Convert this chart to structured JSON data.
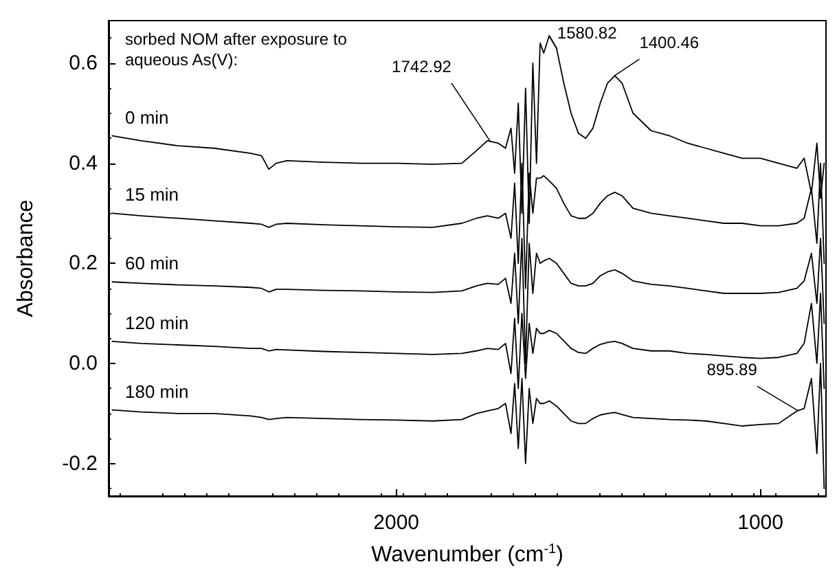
{
  "chart_data": {
    "type": "line",
    "xlabel": "Wavenumber (cm$^{-1}$)",
    "ylabel": "Absorbance",
    "xlim": [
      2790,
      820
    ],
    "ylim": [
      -0.265,
      0.685
    ],
    "xticks": [
      2000,
      1000
    ],
    "yticks": [
      -0.2,
      {
        "value": 0,
        "label": "0.0"
      },
      0.2,
      0.4,
      0.6
    ],
    "grid": false,
    "legend": false,
    "marker": "none",
    "x": [
      2780,
      2700,
      2600,
      2500,
      2400,
      2370,
      2350,
      2330,
      2300,
      2200,
      2100,
      2000,
      1900,
      1820,
      1780,
      1750,
      1720,
      1700,
      1685,
      1675,
      1665,
      1655,
      1645,
      1635,
      1625,
      1615,
      1605,
      1595,
      1580,
      1560,
      1540,
      1520,
      1500,
      1480,
      1460,
      1440,
      1420,
      1400,
      1380,
      1350,
      1300,
      1250,
      1200,
      1150,
      1100,
      1050,
      1000,
      950,
      900,
      880,
      860,
      845,
      835,
      825
    ],
    "series": [
      {
        "name": "0 min",
        "color": "#000000",
        "values": [
          0.455,
          0.445,
          0.435,
          0.43,
          0.42,
          0.415,
          0.388,
          0.4,
          0.405,
          0.402,
          0.4,
          0.4,
          0.398,
          0.4,
          0.425,
          0.445,
          0.44,
          0.43,
          0.47,
          0.38,
          0.52,
          0.3,
          0.55,
          0.28,
          0.6,
          0.4,
          0.64,
          0.62,
          0.655,
          0.63,
          0.56,
          0.5,
          0.46,
          0.45,
          0.47,
          0.52,
          0.56,
          0.575,
          0.56,
          0.5,
          0.465,
          0.455,
          0.44,
          0.43,
          0.42,
          0.41,
          0.41,
          0.4,
          0.39,
          0.41,
          0.34,
          0.44,
          0.33,
          0.4
        ]
      },
      {
        "name": "15 min",
        "color": "#000000",
        "values": [
          0.3,
          0.295,
          0.29,
          0.285,
          0.28,
          0.278,
          0.272,
          0.278,
          0.28,
          0.277,
          0.275,
          0.273,
          0.272,
          0.28,
          0.29,
          0.295,
          0.29,
          0.3,
          0.25,
          0.36,
          0.2,
          0.4,
          0.15,
          0.38,
          0.3,
          0.37,
          0.37,
          0.375,
          0.365,
          0.35,
          0.32,
          0.295,
          0.29,
          0.29,
          0.3,
          0.32,
          0.335,
          0.342,
          0.335,
          0.31,
          0.3,
          0.295,
          0.29,
          0.285,
          0.28,
          0.28,
          0.275,
          0.275,
          0.28,
          0.29,
          0.35,
          0.24,
          0.4,
          0.2
        ]
      },
      {
        "name": "60 min",
        "color": "#000000",
        "values": [
          0.163,
          0.16,
          0.157,
          0.155,
          0.152,
          0.15,
          0.143,
          0.148,
          0.148,
          0.146,
          0.145,
          0.143,
          0.142,
          0.145,
          0.155,
          0.16,
          0.158,
          0.17,
          0.12,
          0.22,
          0.08,
          0.25,
          0.0,
          0.24,
          0.14,
          0.22,
          0.2,
          0.205,
          0.21,
          0.2,
          0.18,
          0.16,
          0.155,
          0.155,
          0.16,
          0.175,
          0.183,
          0.187,
          0.18,
          0.165,
          0.158,
          0.155,
          0.15,
          0.145,
          0.14,
          0.14,
          0.14,
          0.142,
          0.15,
          0.165,
          0.22,
          0.12,
          0.25,
          0.08
        ]
      },
      {
        "name": "120 min",
        "color": "#000000",
        "values": [
          0.044,
          0.04,
          0.037,
          0.034,
          0.03,
          0.03,
          0.025,
          0.028,
          0.027,
          0.024,
          0.022,
          0.02,
          0.018,
          0.02,
          0.025,
          0.03,
          0.028,
          0.04,
          -0.02,
          0.09,
          -0.05,
          0.1,
          -0.03,
          0.08,
          0.02,
          0.07,
          0.06,
          0.06,
          0.066,
          0.06,
          0.045,
          0.03,
          0.022,
          0.02,
          0.03,
          0.038,
          0.042,
          0.044,
          0.04,
          0.03,
          0.025,
          0.025,
          0.02,
          0.018,
          0.015,
          0.012,
          0.01,
          0.012,
          0.02,
          0.04,
          0.12,
          0.0,
          0.14,
          -0.05
        ]
      },
      {
        "name": "180 min",
        "color": "#000000",
        "values": [
          -0.093,
          -0.097,
          -0.1,
          -0.1,
          -0.105,
          -0.108,
          -0.112,
          -0.11,
          -0.108,
          -0.11,
          -0.112,
          -0.113,
          -0.115,
          -0.112,
          -0.1,
          -0.095,
          -0.09,
          -0.08,
          -0.14,
          -0.04,
          -0.17,
          -0.03,
          -0.2,
          -0.05,
          -0.12,
          -0.07,
          -0.08,
          -0.08,
          -0.075,
          -0.085,
          -0.1,
          -0.115,
          -0.12,
          -0.12,
          -0.11,
          -0.103,
          -0.1,
          -0.098,
          -0.102,
          -0.108,
          -0.11,
          -0.112,
          -0.113,
          -0.115,
          -0.12,
          -0.125,
          -0.122,
          -0.12,
          -0.095,
          -0.09,
          -0.03,
          -0.18,
          0.0,
          -0.25
        ]
      }
    ],
    "annotations": [
      "sorbed NOM after exposure to aqueous As(V):",
      {
        "text": "1742.92",
        "x": 1742.92,
        "y": 0.445
      },
      {
        "text": "1580.82",
        "x": 1580.82,
        "y": 0.655
      },
      {
        "text": "1400.46",
        "x": 1400.46,
        "y": 0.575
      },
      {
        "text": "895.89",
        "x": 895.89,
        "y": -0.095
      }
    ]
  }
}
